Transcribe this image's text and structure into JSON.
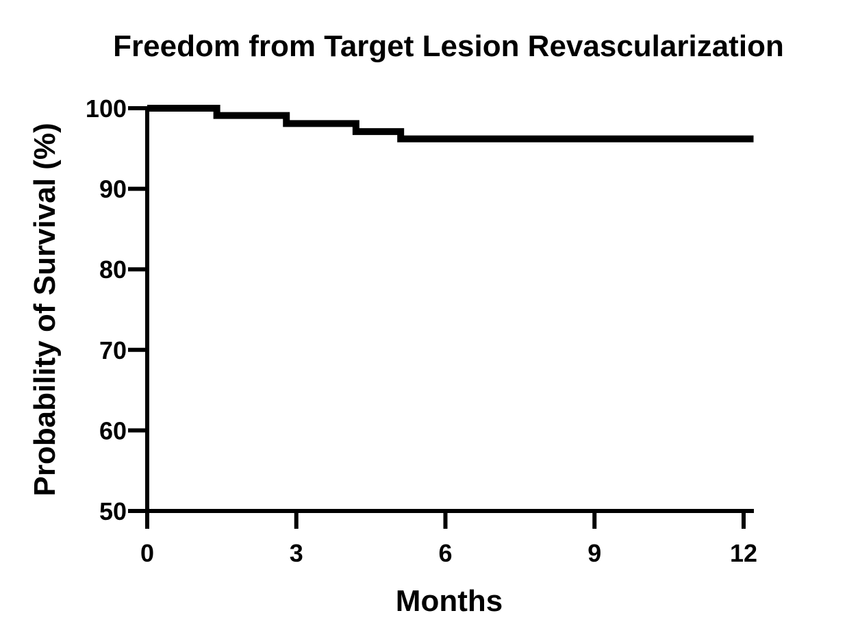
{
  "chart_data": {
    "type": "line",
    "step": true,
    "title": "Freedom from Target Lesion Revascularization",
    "xlabel": "Months",
    "ylabel": "Probability of Survival (%)",
    "xlim": [
      0,
      12
    ],
    "ylim": [
      50,
      100
    ],
    "x_ticks": [
      "0",
      "3",
      "6",
      "9",
      "12"
    ],
    "y_ticks": [
      "50",
      "60",
      "70",
      "80",
      "90",
      "100"
    ],
    "grid": false,
    "line_color": "#000000",
    "series": [
      {
        "x": [
          0,
          1.4,
          2.8,
          4.2,
          5.1,
          12.2
        ],
        "y": [
          100,
          99.1,
          98.1,
          97.1,
          96.2,
          96.2
        ]
      }
    ]
  }
}
